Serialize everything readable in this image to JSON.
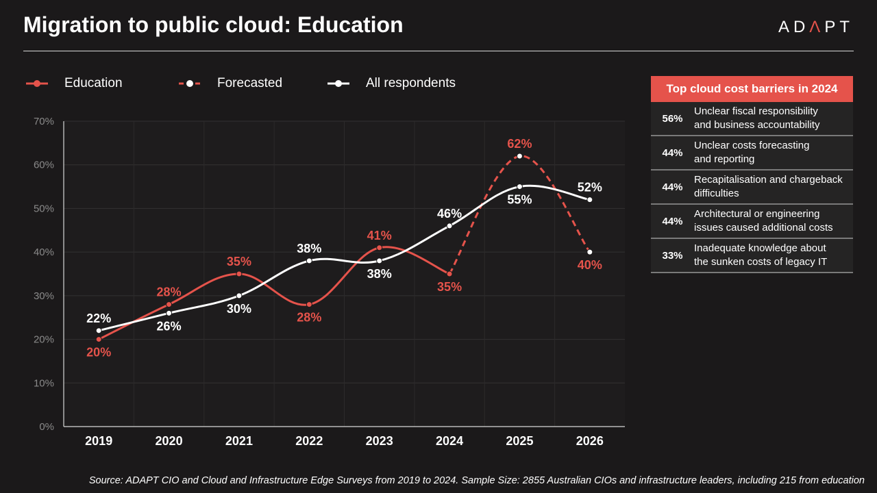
{
  "header": {
    "title": "Migration to public cloud: Education",
    "logo_text": "ADAPT"
  },
  "legend": [
    {
      "label": "Education",
      "style": "solid",
      "color": "#e5534b"
    },
    {
      "label": "Forecasted",
      "style": "dashed",
      "color": "#e5534b"
    },
    {
      "label": "All respondents",
      "style": "solid",
      "color": "#ffffff"
    }
  ],
  "chart_data": {
    "type": "line",
    "categories": [
      "2019",
      "2020",
      "2021",
      "2022",
      "2023",
      "2024",
      "2025",
      "2026"
    ],
    "ylim": [
      0,
      70
    ],
    "yticks": [
      0,
      10,
      20,
      30,
      40,
      50,
      60,
      70
    ],
    "ytick_labels": [
      "0%",
      "10%",
      "20%",
      "30%",
      "40%",
      "50%",
      "60%",
      "70%"
    ],
    "grid": true,
    "legend_position": "top-left",
    "series": [
      {
        "name": "Education",
        "color": "#e5534b",
        "style": "solid",
        "x": [
          "2019",
          "2020",
          "2021",
          "2022",
          "2023",
          "2024"
        ],
        "values": [
          20,
          28,
          35,
          28,
          41,
          35
        ],
        "labels": [
          "20%",
          "28%",
          "35%",
          "28%",
          "41%",
          "35%"
        ]
      },
      {
        "name": "Forecasted",
        "color": "#e5534b",
        "style": "dashed",
        "x": [
          "2024",
          "2025",
          "2026"
        ],
        "values": [
          35,
          62,
          40
        ],
        "labels": [
          "",
          "62%",
          "40%"
        ]
      },
      {
        "name": "All respondents",
        "color": "#ffffff",
        "style": "solid",
        "x": [
          "2019",
          "2020",
          "2021",
          "2022",
          "2023",
          "2024",
          "2025",
          "2026"
        ],
        "values": [
          22,
          26,
          30,
          38,
          38,
          46,
          55,
          52
        ],
        "labels": [
          "22%",
          "26%",
          "30%",
          "38%",
          "38%",
          "46%",
          "55%",
          "52%"
        ]
      }
    ]
  },
  "barriers": {
    "title": "Top cloud cost barriers in 2024",
    "items": [
      {
        "pct": "56%",
        "text": "Unclear fiscal responsibility\nand business accountability"
      },
      {
        "pct": "44%",
        "text": "Unclear costs forecasting\nand reporting"
      },
      {
        "pct": "44%",
        "text": "Recapitalisation and chargeback\ndifficulties"
      },
      {
        "pct": "44%",
        "text": "Architectural or engineering\nissues caused additional costs"
      },
      {
        "pct": "33%",
        "text": "Inadequate knowledge about\nthe sunken costs of legacy IT"
      }
    ]
  },
  "footer": {
    "source": "Source: ADAPT CIO and Cloud and Infrastructure Edge Surveys from 2019 to 2024. Sample Size: 2855 Australian CIOs and infrastructure leaders, including 215 from education"
  }
}
